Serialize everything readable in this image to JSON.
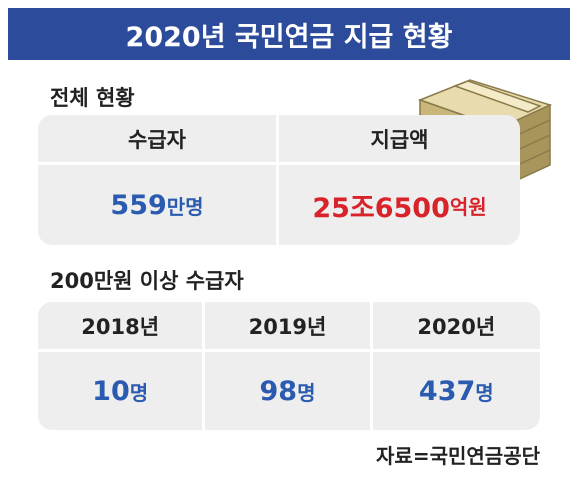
{
  "header": {
    "title": "2020년 국민연금 지급 현황"
  },
  "overall": {
    "title": "전체 현황",
    "columns": [
      {
        "label": "수급자",
        "number": "559",
        "unit": "만명"
      },
      {
        "label": "지급액",
        "number": "25조6500",
        "unit": "억원"
      }
    ]
  },
  "high_earners": {
    "title": "200만원 이상 수급자",
    "columns": [
      {
        "label": "2018년",
        "number": "10",
        "unit": "명"
      },
      {
        "label": "2019년",
        "number": "98",
        "unit": "명"
      },
      {
        "label": "2020년",
        "number": "437",
        "unit": "명"
      }
    ]
  },
  "source": "자료=국민연금공단"
}
